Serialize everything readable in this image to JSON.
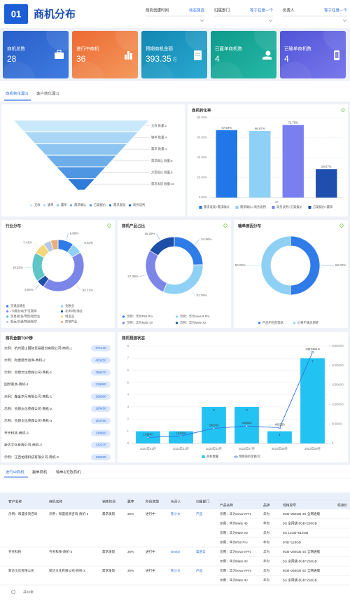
{
  "header": {
    "badge": "01",
    "title": "商机分布",
    "filters": [
      {
        "label": "商机创建时间",
        "value": "动态筛选"
      },
      {
        "label": "归属部门",
        "value": "等于任意一个"
      },
      {
        "label": "负责人",
        "value": "等于任意一个"
      }
    ]
  },
  "kpis": [
    {
      "label": "商机总数",
      "value": 28
    },
    {
      "label": "进行中商机",
      "value": 36
    },
    {
      "label": "预期商机金额",
      "value": 393.35,
      "unit": "万"
    },
    {
      "label": "已赢单商机数",
      "value": 4
    },
    {
      "label": "已输单商机数",
      "value": 4
    }
  ],
  "tabs": [
    "商机转化漏斗",
    "客户转化漏斗"
  ],
  "chart_data": [
    {
      "type": "funnel",
      "categories": [
        "无效",
        "输单",
        "赢单",
        "需求确认",
        "方案报价",
        "需求发现"
      ],
      "values": [
        2,
        4,
        4,
        8,
        8,
        10
      ],
      "value_labels": [
        "无效 数量:2",
        "输单 数量:4",
        "赢单 数量:4",
        "需求确认 数量:8",
        "方案报价 数量:8",
        "需求发现 数量:10"
      ],
      "legend": [
        "无效",
        "输单",
        "赢单",
        "需求确认",
        "方案报价",
        "需求发现",
        "商务谈判"
      ],
      "colors": [
        "#c9e8fa",
        "#a9d7f5",
        "#8cc5f0",
        "#6daeea",
        "#4f96e2",
        "#2f7bd8",
        "#1f5bc4"
      ]
    },
    {
      "type": "bar",
      "title": "商机转化率",
      "categories": [
        "需求发现>需求确认",
        "需求确认>商务谈判",
        "商务谈判>方案报价",
        "方案报价>赢单"
      ],
      "values": [
        67.59,
        66.67,
        72.78,
        28.57
      ],
      "value_labels": [
        "67.59%",
        "66.67%",
        "72.78%",
        "28.57%"
      ],
      "colors": [
        "#2176e8",
        "#8fd1f6",
        "#7a7ff0",
        "#1f4fae"
      ],
      "ylim": [
        0,
        80
      ],
      "yticks": [
        {
          "value": 0,
          "label": "0.00%"
        },
        {
          "value": 20,
          "label": "20.00%"
        },
        {
          "value": 40,
          "label": "40.00%"
        },
        {
          "value": 60,
          "label": "60.00%"
        },
        {
          "value": 80,
          "label": "80.00%"
        }
      ],
      "x_label": "40",
      "grid": true
    },
    {
      "type": "donut",
      "title": "行业分布",
      "categories": [
        "交通运输业",
        "金融业",
        "IT/通信/电子/互联网",
        "农/林/牧/渔业",
        "贸易/批发/零售/租赁业",
        "制造业",
        "航运/交通/物流/航空",
        "房地产业"
      ],
      "values": [
        9.88,
        6.64,
        43.21,
        4.94,
        18.52,
        7.41,
        4.7,
        4.7
      ],
      "value_labels": [
        "9.88%",
        "6.64%",
        "43.21%",
        "4.94%",
        "18.52%",
        "7.41%",
        null,
        null
      ],
      "colors": [
        "#2f7be8",
        "#8fd0f5",
        "#7b86e8",
        "#1e4fa8",
        "#5fc6c6",
        "#f3d77a",
        "#b6c7e6",
        "#e9b07c"
      ]
    },
    {
      "type": "donut",
      "title": "商机产品占比",
      "categories": [
        "示例：华为P50 Pro",
        "示例：华为nova 9 Pro",
        "示例：华为Mate 40",
        "示例：华为Mate X2"
      ],
      "values": [
        24.56,
        31.76,
        27.39,
        16.29
      ],
      "value_labels": [
        "24.56%",
        "31.76%",
        "27.39%",
        "16.29%"
      ],
      "colors": [
        "#2f7be8",
        "#8fd0f5",
        "#7b86e8",
        "#1e4fa8"
      ]
    },
    {
      "type": "donut",
      "title": "输单原因分布",
      "categories": [
        "产品不匹配需求",
        "价格不满足期望"
      ],
      "values": [
        50,
        50
      ],
      "value_labels": [
        "50.00%",
        "50.00%"
      ],
      "colors": [
        "#2f7be8",
        "#8fd0f5"
      ]
    },
    {
      "type": "combo",
      "title": "商机预测状态",
      "categories": [
        "2022年01月",
        "2023年01月",
        "2023年02月",
        "2023年07月",
        "2023年08月",
        "2023年09月"
      ],
      "series": [
        {
          "name": "商机数量",
          "type": "bar",
          "color": "#22c3f3",
          "values": [
            1,
            1,
            3,
            3,
            1,
            7
          ]
        },
        {
          "name": "预期商机金额/元",
          "type": "line",
          "axis": "y2",
          "color": "#2f6fe0",
          "values": [
            154760,
            193450,
            388005,
            448525,
            405250,
            2343496.8
          ]
        }
      ],
      "ylim": [
        0,
        8
      ],
      "yticks": [
        0,
        1,
        2,
        3,
        4,
        5,
        6,
        7,
        8
      ],
      "y2lim": [
        0,
        2500000
      ],
      "y2ticks": [
        0,
        500000,
        1000000,
        1500000,
        2000000,
        2500000
      ],
      "grid": true
    }
  ],
  "top_list": {
    "title": "商机金额TOP榜",
    "rows": [
      {
        "name": "示例：杭州萧山国际贸易股份有限公司-商机-1",
        "value": 971440
      },
      {
        "name": "示例：和盛投资咨询-商机-2",
        "value": 405250
      },
      {
        "name": "示例：点燃文化传媒公司-商机-1",
        "value": 256570
      },
      {
        "name": "固然家具-商机-1",
        "value": 219980
      },
      {
        "name": "示例：鑫金岁月有限公司-商机-1",
        "value": 198990
      },
      {
        "name": "示例：点燃文化传媒公司-商机-2",
        "value": 193450
      },
      {
        "name": "示例：点燃文化传媒公司-商机-3",
        "value": 154760
      },
      {
        "name": "齐天科技-商机-3",
        "value": 148680
      },
      {
        "name": "新达文化有限公司-商机-3",
        "value": 132375
      },
      {
        "name": "示例：江西龙翔科技有限公司-商机-3",
        "value": 129335
      }
    ]
  },
  "table": {
    "tabs": [
      "进行中商机",
      "赢单商机",
      "输单&无效商机"
    ],
    "headers": [
      "客户名称",
      "商机名称",
      "销售阶段",
      "赢率",
      "阶段类型",
      "负责人",
      "归属部门",
      "产品名称",
      "品牌",
      "规格型号",
      "标准价"
    ],
    "rows": [
      {
        "customer": "示例：和盛投资咨询",
        "opportunity": "示例：和盛投资咨询-商机-2",
        "stage": "需求发现",
        "win_rate": "30%",
        "status": "进行中",
        "owner": "陈小文",
        "department": "产品",
        "products": [
          {
            "name": "示例：华为nova 9 Pro",
            "brand": "华为",
            "spec": "8GB+256GB 4G 全网通版"
          },
          {
            "name": "示例：华为Mate 40",
            "brand": "华为",
            "spec": "5G 全网通 8GB+256GB"
          },
          {
            "name": "示例：华为Mate X2",
            "brand": "华为",
            "spec": "5G 12GB+512GB"
          },
          {
            "name": "示例：华为P50 Pro",
            "brand": "华为",
            "spec": "8HB+128GB"
          }
        ]
      },
      {
        "customer": "齐天科技",
        "opportunity": "齐天科技-商机-3",
        "stage": "需求发现",
        "win_rate": "30%",
        "status": "进行中",
        "owner": "Beatty",
        "department": "渠道云",
        "products": [
          {
            "name": "示例：华为nova 9 Pro",
            "brand": "华为",
            "spec": "8GB+256GB 4G 全网通版"
          },
          {
            "name": "示例：华为Mate 40",
            "brand": "华为",
            "spec": "5G 全网通 8GB+256GB"
          }
        ]
      },
      {
        "customer": "新达文化有限公司",
        "opportunity": "新达文化有限公司-商机-3",
        "stage": "需求发现",
        "win_rate": "30%",
        "status": "进行中",
        "owner": "陈小文",
        "department": "产品",
        "products": [
          {
            "name": "示例：华为nova 9 Pro",
            "brand": "华为",
            "spec": "8GB+256GB 4G 全网通版"
          },
          {
            "name": "示例：华为Mate 40",
            "brand": "华为",
            "spec": "5G 全网通 8GB+256GB"
          }
        ]
      }
    ],
    "footer": "共36条"
  }
}
